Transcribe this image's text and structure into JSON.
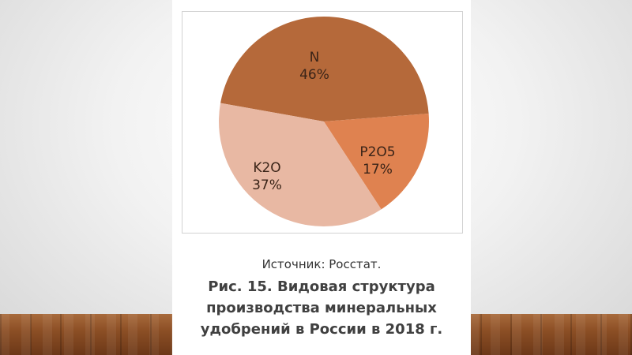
{
  "chart_data": {
    "type": "pie",
    "categories": [
      "N",
      "P2O5",
      "K2O"
    ],
    "values": [
      46,
      17,
      37
    ],
    "labels": [
      "46%",
      "17%",
      "37%"
    ],
    "colors": [
      "#b5693a",
      "#df8250",
      "#e8b8a3"
    ]
  },
  "source_text": "Источник: Росстат.",
  "caption_lines": [
    "Рис. 15. Видовая структура",
    "производства минеральных",
    "удобрений в России в 2018 г."
  ]
}
